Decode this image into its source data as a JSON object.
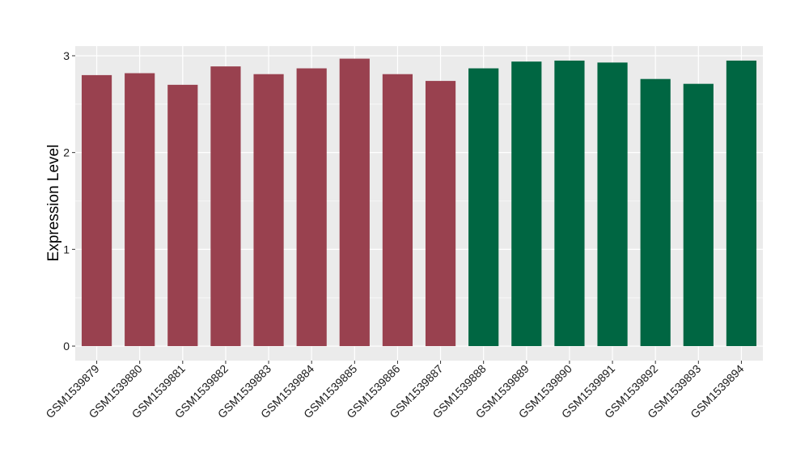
{
  "chart_data": {
    "type": "bar",
    "title": "",
    "xlabel": "",
    "ylabel": "Expression Level",
    "ylim": [
      -0.15,
      3.1
    ],
    "yticks": [
      0,
      1,
      2,
      3
    ],
    "grid": true,
    "legend": "none",
    "categories": [
      "GSM1539879",
      "GSM1539880",
      "GSM1539881",
      "GSM1539882",
      "GSM1539883",
      "GSM1539884",
      "GSM1539885",
      "GSM1539886",
      "GSM1539887",
      "GSM1539888",
      "GSM1539889",
      "GSM1539890",
      "GSM1539891",
      "GSM1539892",
      "GSM1539893",
      "GSM1539894"
    ],
    "values": [
      2.8,
      2.82,
      2.7,
      2.89,
      2.81,
      2.87,
      2.97,
      2.81,
      2.74,
      2.87,
      2.94,
      2.95,
      2.93,
      2.76,
      2.71,
      2.95
    ],
    "groups": [
      0,
      0,
      0,
      0,
      0,
      0,
      0,
      0,
      0,
      1,
      1,
      1,
      1,
      1,
      1,
      1
    ],
    "colors": [
      "#99414f",
      "#006642"
    ],
    "panel_background": "#ebebeb",
    "gridline_color": "#ffffff"
  }
}
